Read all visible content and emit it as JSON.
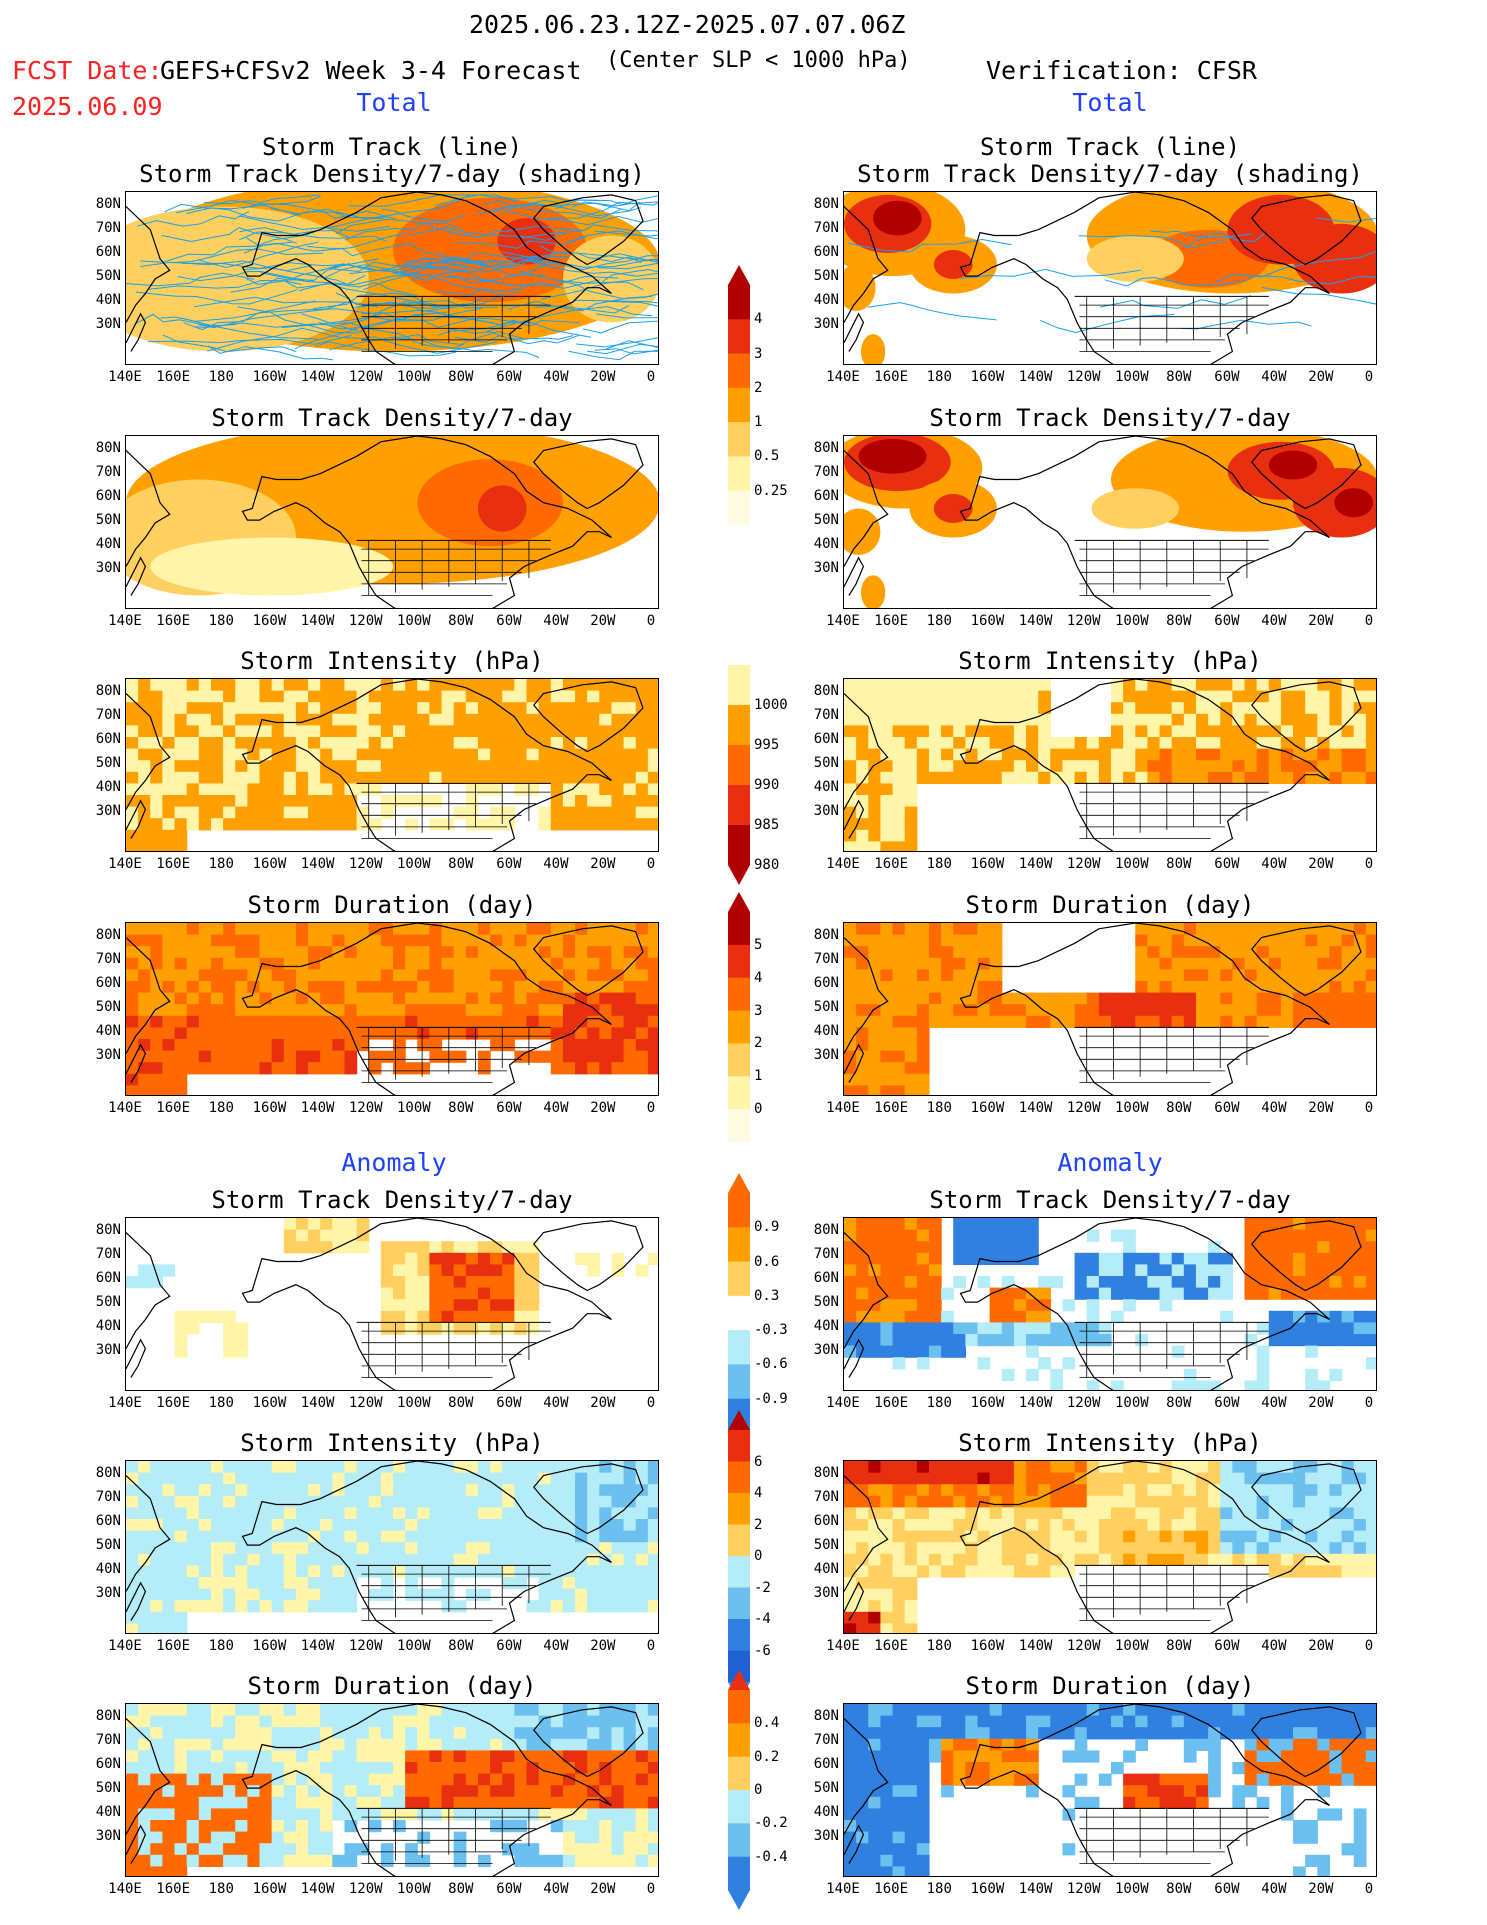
{
  "header": {
    "period": "2025.06.23.12Z-2025.07.07.06Z",
    "fcst_label": "FCST Date:",
    "fcst_date": "2025.06.09",
    "model": "GEFS+CFSv2 Week 3-4 Forecast",
    "criterion": "(Center SLP < 1000 hPa)",
    "verification": "Verification: CFSR"
  },
  "sections": {
    "total": "Total",
    "anomaly": "Anomaly"
  },
  "panel_titles": {
    "track_line": "Storm Track (line)",
    "track_shading": "Storm Track Density/7-day (shading)",
    "density": "Storm Track Density/7-day",
    "intensity": "Storm Intensity (hPa)",
    "duration": "Storm Duration (day)"
  },
  "axes": {
    "lat_labels": [
      "80N",
      "70N",
      "60N",
      "50N",
      "40N",
      "30N"
    ],
    "lon_labels": [
      "140E",
      "160E",
      "180",
      "160W",
      "140W",
      "120W",
      "100W",
      "80W",
      "60W",
      "40W",
      "20W",
      "0"
    ]
  },
  "colorbars": {
    "total_density": [
      "4",
      "3",
      "2",
      "1",
      "0.5",
      "0.25"
    ],
    "total_intensity": [
      "1000",
      "995",
      "990",
      "985",
      "980"
    ],
    "total_duration": [
      "5",
      "4",
      "3",
      "2",
      "1",
      "0"
    ],
    "anom_density": [
      "0.9",
      "0.6",
      "0.3",
      "-0.3",
      "-0.6",
      "-0.9"
    ],
    "anom_intensity": [
      "6",
      "4",
      "2",
      "0",
      "-2",
      "-4",
      "-6"
    ],
    "anom_duration": [
      "0.4",
      "0.2",
      "0",
      "-0.2",
      "-0.4"
    ]
  },
  "colors": {
    "pale": "#fff5a8",
    "lightorange": "#ffd060",
    "orange": "#ffa000",
    "darkorange": "#ff6a00",
    "red": "#e83010",
    "darkred": "#b00000",
    "lightblue": "#b4ecf8",
    "midblue": "#6cc0f0",
    "blue": "#3080e0",
    "track": "#1ca0e8"
  }
}
